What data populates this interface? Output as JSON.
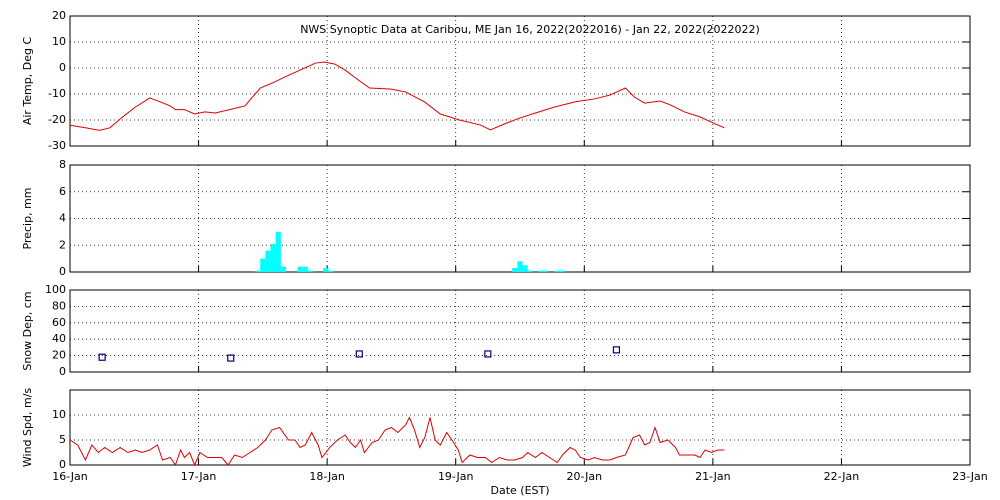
{
  "chart_data": [
    {
      "type": "line",
      "title": "NWS Synoptic Data at Caribou, ME   Jan 16, 2022(2022016) - Jan 22, 2022(2022022)",
      "ylabel": "Air Temp, Deg C",
      "color": "#dd0000",
      "ylim": [
        -30,
        20
      ],
      "yticks": [
        -30,
        -20,
        -10,
        0,
        10,
        20
      ],
      "grid": true,
      "x": [
        0,
        0.12,
        0.23,
        0.31,
        0.43,
        0.51,
        0.62,
        0.7,
        0.78,
        0.82,
        0.89,
        0.97,
        1.05,
        1.13,
        1.24,
        1.36,
        1.48,
        1.59,
        1.67,
        1.79,
        1.91,
        1.98,
        2.06,
        2.14,
        2.22,
        2.33,
        2.49,
        2.61,
        2.76,
        2.88,
        3.03,
        3.19,
        3.27,
        3.38,
        3.5,
        3.62,
        3.77,
        3.93,
        4.08,
        4.2,
        4.32,
        4.39,
        4.47,
        4.59,
        4.67,
        4.78,
        4.9,
        5.02,
        5.09
      ],
      "values": [
        -22,
        -23,
        -24,
        -23,
        -18,
        -15,
        -11.5,
        -13,
        -14.6,
        -16,
        -16,
        -17.7,
        -16.9,
        -17.3,
        -16,
        -14.6,
        -7.7,
        -5.4,
        -3.5,
        -0.8,
        1.9,
        2.3,
        1.5,
        -0.8,
        -3.8,
        -7.7,
        -8.1,
        -9.2,
        -13.1,
        -17.7,
        -20,
        -21.9,
        -23.8,
        -21.5,
        -19.2,
        -17.3,
        -15,
        -13,
        -11.9,
        -10.4,
        -7.7,
        -11.2,
        -13.5,
        -12.7,
        -14.2,
        -16.9,
        -18.8,
        -21.5,
        -23
      ]
    },
    {
      "type": "bar",
      "ylabel": "Precip, mm",
      "color": "#00ffff",
      "ylim": [
        0,
        8
      ],
      "yticks": [
        0,
        2,
        4,
        6,
        8
      ],
      "grid": true,
      "x": [
        1.46,
        1.5,
        1.54,
        1.58,
        1.62,
        1.66,
        1.79,
        1.83,
        1.87,
        1.99,
        2.03,
        3.46,
        3.5,
        3.54,
        3.58,
        3.66,
        3.7,
        3.79,
        3.83
      ],
      "values": [
        0.1,
        1.0,
        1.6,
        2.1,
        3.0,
        0.4,
        0.4,
        0.4,
        0.1,
        0.3,
        0.1,
        0.3,
        0.8,
        0.5,
        0.1,
        0.1,
        0.1,
        0.1,
        0.1
      ]
    },
    {
      "type": "scatter",
      "ylabel": "Snow Dep, cm",
      "color": "#000080",
      "ylim": [
        0,
        100
      ],
      "yticks": [
        0,
        20,
        40,
        60,
        80,
        100
      ],
      "grid": true,
      "x": [
        0.25,
        1.25,
        2.25,
        3.25,
        4.25
      ],
      "values": [
        18,
        17,
        22,
        22,
        27
      ]
    },
    {
      "type": "line",
      "ylabel": "Wind Spd, m/s",
      "xlabel": "Date (EST)",
      "color": "#dd0000",
      "ylim": [
        0,
        15
      ],
      "yticks": [
        0,
        5,
        10
      ],
      "grid": true,
      "xlim": [
        0,
        7
      ],
      "xticks": [
        {
          "value": 0,
          "label": "16-Jan"
        },
        {
          "value": 1,
          "label": "17-Jan"
        },
        {
          "value": 2,
          "label": "18-Jan"
        },
        {
          "value": 3,
          "label": "19-Jan"
        },
        {
          "value": 4,
          "label": "20-Jan"
        },
        {
          "value": 5,
          "label": "21-Jan"
        },
        {
          "value": 6,
          "label": "22-Jan"
        },
        {
          "value": 7,
          "label": "23-Jan"
        }
      ],
      "x": [
        0,
        0.06,
        0.12,
        0.17,
        0.22,
        0.27,
        0.33,
        0.39,
        0.45,
        0.51,
        0.56,
        0.62,
        0.68,
        0.72,
        0.78,
        0.82,
        0.86,
        0.89,
        0.93,
        0.97,
        1.01,
        1.07,
        1.13,
        1.18,
        1.23,
        1.28,
        1.34,
        1.4,
        1.46,
        1.52,
        1.57,
        1.63,
        1.7,
        1.75,
        1.79,
        1.83,
        1.88,
        1.93,
        1.96,
        2.02,
        2.08,
        2.14,
        2.18,
        2.22,
        2.26,
        2.29,
        2.35,
        2.4,
        2.45,
        2.5,
        2.55,
        2.61,
        2.64,
        2.68,
        2.72,
        2.76,
        2.8,
        2.84,
        2.88,
        2.93,
        2.97,
        3.02,
        3.05,
        3.11,
        3.17,
        3.23,
        3.28,
        3.34,
        3.4,
        3.46,
        3.52,
        3.56,
        3.62,
        3.67,
        3.73,
        3.79,
        3.83,
        3.89,
        3.93,
        3.97,
        4.03,
        4.08,
        4.14,
        4.2,
        4.25,
        4.32,
        4.38,
        4.43,
        4.47,
        4.51,
        4.55,
        4.59,
        4.65,
        4.71,
        4.74,
        4.81,
        4.86,
        4.9,
        4.94,
        4.99,
        5.04,
        5.09
      ],
      "values": [
        5,
        4,
        1,
        4,
        2.5,
        3.5,
        2.5,
        3.5,
        2.5,
        3,
        2.5,
        3,
        4,
        1,
        1.5,
        0,
        3,
        1.5,
        2.5,
        0,
        2.5,
        1.5,
        1.5,
        1.5,
        0,
        2,
        1.5,
        2.5,
        3.5,
        5,
        7,
        7.5,
        5,
        5,
        3.5,
        4,
        6.5,
        4,
        1.5,
        3.5,
        5,
        6,
        4.5,
        3.5,
        5,
        2.5,
        4.5,
        5,
        7,
        7.5,
        6.5,
        8,
        9.5,
        7,
        3.5,
        5.5,
        9.5,
        5,
        4,
        6.5,
        5,
        3,
        0.5,
        2,
        1.5,
        1.5,
        0.5,
        1.5,
        1,
        1,
        1.5,
        2.5,
        1.5,
        2.5,
        1.5,
        0.5,
        2,
        3.5,
        3,
        1.5,
        1,
        1.5,
        1,
        1,
        1.5,
        2,
        5.5,
        6,
        4,
        4.5,
        7.5,
        4.5,
        5,
        3.5,
        2,
        2,
        2,
        1.5,
        3,
        2.5,
        3,
        3
      ]
    }
  ]
}
